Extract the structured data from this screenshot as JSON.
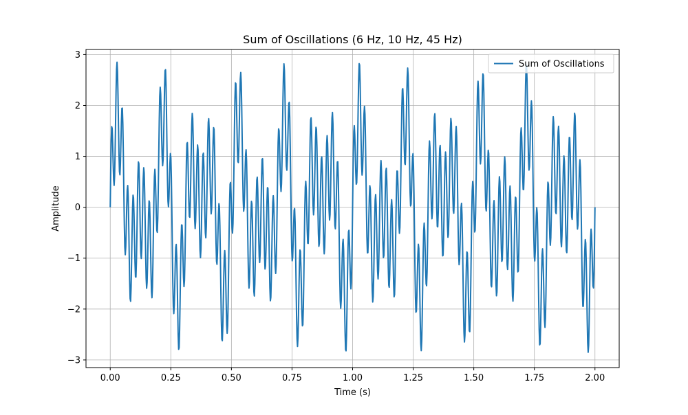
{
  "chart_data": {
    "type": "line",
    "title": "Sum of Oscillations (6 Hz, 10 Hz, 45 Hz)",
    "xlabel": "Time (s)",
    "ylabel": "Amplitude",
    "xlim": [
      -0.1,
      2.1
    ],
    "ylim": [
      -3.15,
      3.1
    ],
    "x_ticks": [
      0.0,
      0.25,
      0.5,
      0.75,
      1.0,
      1.25,
      1.5,
      1.75,
      2.0
    ],
    "x_tick_labels": [
      "0.00",
      "0.25",
      "0.50",
      "0.75",
      "1.00",
      "1.25",
      "1.50",
      "1.75",
      "2.00"
    ],
    "y_ticks": [
      -3,
      -2,
      -1,
      0,
      1,
      2,
      3
    ],
    "y_tick_labels": [
      "−3",
      "−2",
      "−1",
      "0",
      "1",
      "2",
      "3"
    ],
    "grid": true,
    "legend_position": "top-right",
    "series": [
      {
        "name": "Sum of Oscillations",
        "color": "#1f77b4",
        "function": "sin(2*pi*6*t) + sin(2*pi*10*t) + sin(2*pi*45*t)",
        "x_start": 0.0,
        "x_end": 2.0,
        "samples": 1000
      }
    ]
  }
}
